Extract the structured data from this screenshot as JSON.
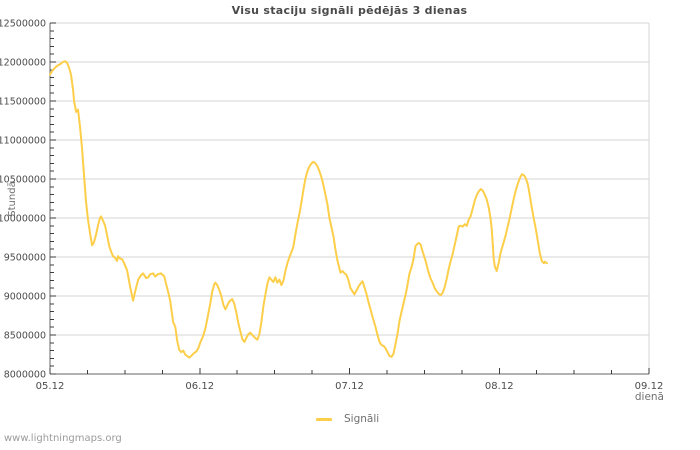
{
  "page": {
    "watermark": "www.lightningmaps.org"
  },
  "chart_data": {
    "type": "line",
    "title": "Visu staciju signāli pēdējās 3 dienas",
    "ylabel": "Stundā",
    "xlabel": "dienā",
    "legend_position": "bottom-center",
    "grid": "horizontal-only",
    "colors": {
      "line": "#fcce4a",
      "grid": "#d6d6d6",
      "axis": "#666666",
      "tick": "#3c3c3c",
      "tick_text": "#4c4c4c",
      "muted_text": "#707070",
      "title_text": "#4a4a4a",
      "watermark_text": "#9b9b9b"
    },
    "xlim_days": [
      5,
      9
    ],
    "x_minor_step_days": 0.25,
    "x_ticks": [
      {
        "day": 5,
        "label": "05.12"
      },
      {
        "day": 6,
        "label": "06.12"
      },
      {
        "day": 7,
        "label": "07.12"
      },
      {
        "day": 8,
        "label": "08.12"
      },
      {
        "day": 9,
        "label": "09.12"
      }
    ],
    "ylim": [
      8000000,
      12500000
    ],
    "y_tick_step": 500000,
    "y_minor_step": 100000,
    "y_tick_labels": [
      "8000000",
      "8500000",
      "9000000",
      "9500000",
      "10000000",
      "10500000",
      "11000000",
      "11500000",
      "12000000",
      "12500000"
    ],
    "series": [
      {
        "name": "Signāli",
        "points": [
          [
            5.0,
            11840000
          ],
          [
            5.02,
            11900000
          ],
          [
            5.047,
            11950000
          ],
          [
            5.067,
            11970000
          ],
          [
            5.087,
            12000000
          ],
          [
            5.1,
            12010000
          ],
          [
            5.114,
            11990000
          ],
          [
            5.127,
            11930000
          ],
          [
            5.14,
            11840000
          ],
          [
            5.154,
            11640000
          ],
          [
            5.161,
            11500000
          ],
          [
            5.174,
            11360000
          ],
          [
            5.187,
            11390000
          ],
          [
            5.201,
            11160000
          ],
          [
            5.214,
            10900000
          ],
          [
            5.227,
            10550000
          ],
          [
            5.241,
            10200000
          ],
          [
            5.254,
            9980000
          ],
          [
            5.268,
            9800000
          ],
          [
            5.281,
            9650000
          ],
          [
            5.294,
            9690000
          ],
          [
            5.308,
            9790000
          ],
          [
            5.321,
            9910000
          ],
          [
            5.334,
            10000000
          ],
          [
            5.341,
            10020000
          ],
          [
            5.355,
            9960000
          ],
          [
            5.368,
            9900000
          ],
          [
            5.381,
            9780000
          ],
          [
            5.395,
            9640000
          ],
          [
            5.408,
            9570000
          ],
          [
            5.421,
            9510000
          ],
          [
            5.435,
            9490000
          ],
          [
            5.448,
            9450000
          ],
          [
            5.455,
            9510000
          ],
          [
            5.468,
            9480000
          ],
          [
            5.482,
            9470000
          ],
          [
            5.495,
            9420000
          ],
          [
            5.515,
            9330000
          ],
          [
            5.535,
            9120000
          ],
          [
            5.555,
            8940000
          ],
          [
            5.569,
            9060000
          ],
          [
            5.589,
            9210000
          ],
          [
            5.609,
            9270000
          ],
          [
            5.622,
            9290000
          ],
          [
            5.642,
            9230000
          ],
          [
            5.656,
            9240000
          ],
          [
            5.669,
            9280000
          ],
          [
            5.689,
            9290000
          ],
          [
            5.702,
            9250000
          ],
          [
            5.722,
            9280000
          ],
          [
            5.742,
            9290000
          ],
          [
            5.763,
            9250000
          ],
          [
            5.776,
            9150000
          ],
          [
            5.789,
            9050000
          ],
          [
            5.803,
            8940000
          ],
          [
            5.823,
            8660000
          ],
          [
            5.836,
            8610000
          ],
          [
            5.85,
            8420000
          ],
          [
            5.863,
            8310000
          ],
          [
            5.876,
            8280000
          ],
          [
            5.89,
            8300000
          ],
          [
            5.903,
            8250000
          ],
          [
            5.916,
            8230000
          ],
          [
            5.93,
            8210000
          ],
          [
            5.943,
            8230000
          ],
          [
            5.957,
            8260000
          ],
          [
            5.977,
            8290000
          ],
          [
            5.99,
            8330000
          ],
          [
            6.003,
            8400000
          ],
          [
            6.023,
            8490000
          ],
          [
            6.037,
            8580000
          ],
          [
            6.05,
            8700000
          ],
          [
            6.07,
            8900000
          ],
          [
            6.084,
            9060000
          ],
          [
            6.097,
            9150000
          ],
          [
            6.104,
            9170000
          ],
          [
            6.117,
            9140000
          ],
          [
            6.13,
            9080000
          ],
          [
            6.144,
            9000000
          ],
          [
            6.157,
            8890000
          ],
          [
            6.171,
            8830000
          ],
          [
            6.184,
            8880000
          ],
          [
            6.197,
            8930000
          ],
          [
            6.217,
            8960000
          ],
          [
            6.231,
            8900000
          ],
          [
            6.244,
            8790000
          ],
          [
            6.257,
            8660000
          ],
          [
            6.271,
            8550000
          ],
          [
            6.284,
            8450000
          ],
          [
            6.298,
            8410000
          ],
          [
            6.311,
            8460000
          ],
          [
            6.324,
            8510000
          ],
          [
            6.338,
            8530000
          ],
          [
            6.351,
            8500000
          ],
          [
            6.371,
            8460000
          ],
          [
            6.385,
            8440000
          ],
          [
            6.398,
            8510000
          ],
          [
            6.411,
            8660000
          ],
          [
            6.425,
            8870000
          ],
          [
            6.438,
            9010000
          ],
          [
            6.452,
            9160000
          ],
          [
            6.465,
            9240000
          ],
          [
            6.478,
            9210000
          ],
          [
            6.492,
            9180000
          ],
          [
            6.505,
            9240000
          ],
          [
            6.518,
            9170000
          ],
          [
            6.532,
            9210000
          ],
          [
            6.545,
            9140000
          ],
          [
            6.559,
            9200000
          ],
          [
            6.572,
            9320000
          ],
          [
            6.585,
            9420000
          ],
          [
            6.599,
            9500000
          ],
          [
            6.612,
            9560000
          ],
          [
            6.625,
            9630000
          ],
          [
            6.639,
            9790000
          ],
          [
            6.652,
            9930000
          ],
          [
            6.666,
            10060000
          ],
          [
            6.679,
            10200000
          ],
          [
            6.692,
            10360000
          ],
          [
            6.706,
            10510000
          ],
          [
            6.719,
            10600000
          ],
          [
            6.732,
            10660000
          ],
          [
            6.746,
            10700000
          ],
          [
            6.759,
            10720000
          ],
          [
            6.773,
            10700000
          ],
          [
            6.786,
            10660000
          ],
          [
            6.799,
            10600000
          ],
          [
            6.813,
            10520000
          ],
          [
            6.826,
            10420000
          ],
          [
            6.839,
            10300000
          ],
          [
            6.853,
            10170000
          ],
          [
            6.866,
            10000000
          ],
          [
            6.88,
            9880000
          ],
          [
            6.893,
            9760000
          ],
          [
            6.906,
            9600000
          ],
          [
            6.92,
            9450000
          ],
          [
            6.94,
            9300000
          ],
          [
            6.953,
            9320000
          ],
          [
            6.967,
            9290000
          ],
          [
            6.98,
            9270000
          ],
          [
            6.993,
            9200000
          ],
          [
            7.007,
            9100000
          ],
          [
            7.02,
            9060000
          ],
          [
            7.033,
            9020000
          ],
          [
            7.047,
            9070000
          ],
          [
            7.06,
            9120000
          ],
          [
            7.074,
            9160000
          ],
          [
            7.087,
            9190000
          ],
          [
            7.1,
            9110000
          ],
          [
            7.114,
            9020000
          ],
          [
            7.127,
            8920000
          ],
          [
            7.14,
            8830000
          ],
          [
            7.154,
            8730000
          ],
          [
            7.174,
            8600000
          ],
          [
            7.187,
            8500000
          ],
          [
            7.201,
            8410000
          ],
          [
            7.214,
            8370000
          ],
          [
            7.228,
            8360000
          ],
          [
            7.241,
            8330000
          ],
          [
            7.254,
            8280000
          ],
          [
            7.268,
            8230000
          ],
          [
            7.281,
            8220000
          ],
          [
            7.294,
            8260000
          ],
          [
            7.308,
            8390000
          ],
          [
            7.321,
            8520000
          ],
          [
            7.334,
            8680000
          ],
          [
            7.348,
            8800000
          ],
          [
            7.361,
            8910000
          ],
          [
            7.375,
            9020000
          ],
          [
            7.388,
            9150000
          ],
          [
            7.401,
            9290000
          ],
          [
            7.415,
            9370000
          ],
          [
            7.428,
            9480000
          ],
          [
            7.441,
            9640000
          ],
          [
            7.455,
            9670000
          ],
          [
            7.462,
            9680000
          ],
          [
            7.475,
            9660000
          ],
          [
            7.488,
            9570000
          ],
          [
            7.508,
            9450000
          ],
          [
            7.528,
            9300000
          ],
          [
            7.542,
            9220000
          ],
          [
            7.555,
            9170000
          ],
          [
            7.569,
            9100000
          ],
          [
            7.582,
            9060000
          ],
          [
            7.595,
            9030000
          ],
          [
            7.609,
            9010000
          ],
          [
            7.622,
            9040000
          ],
          [
            7.635,
            9110000
          ],
          [
            7.649,
            9220000
          ],
          [
            7.662,
            9340000
          ],
          [
            7.676,
            9450000
          ],
          [
            7.689,
            9540000
          ],
          [
            7.702,
            9650000
          ],
          [
            7.716,
            9770000
          ],
          [
            7.729,
            9890000
          ],
          [
            7.742,
            9900000
          ],
          [
            7.756,
            9890000
          ],
          [
            7.769,
            9920000
          ],
          [
            7.783,
            9900000
          ],
          [
            7.796,
            9980000
          ],
          [
            7.809,
            10020000
          ],
          [
            7.823,
            10120000
          ],
          [
            7.836,
            10220000
          ],
          [
            7.849,
            10290000
          ],
          [
            7.863,
            10340000
          ],
          [
            7.876,
            10370000
          ],
          [
            7.89,
            10350000
          ],
          [
            7.903,
            10300000
          ],
          [
            7.916,
            10240000
          ],
          [
            7.93,
            10130000
          ],
          [
            7.943,
            9980000
          ],
          [
            7.95,
            9850000
          ],
          [
            7.957,
            9660000
          ],
          [
            7.963,
            9480000
          ],
          [
            7.97,
            9380000
          ],
          [
            7.983,
            9320000
          ],
          [
            7.997,
            9430000
          ],
          [
            8.01,
            9560000
          ],
          [
            8.024,
            9650000
          ],
          [
            8.043,
            9780000
          ],
          [
            8.057,
            9900000
          ],
          [
            8.07,
            10000000
          ],
          [
            8.084,
            10130000
          ],
          [
            8.097,
            10250000
          ],
          [
            8.11,
            10350000
          ],
          [
            8.124,
            10440000
          ],
          [
            8.137,
            10510000
          ],
          [
            8.151,
            10560000
          ],
          [
            8.164,
            10550000
          ],
          [
            8.177,
            10510000
          ],
          [
            8.191,
            10430000
          ],
          [
            8.204,
            10290000
          ],
          [
            8.217,
            10140000
          ],
          [
            8.231,
            9990000
          ],
          [
            8.244,
            9860000
          ],
          [
            8.258,
            9700000
          ],
          [
            8.271,
            9550000
          ],
          [
            8.284,
            9450000
          ],
          [
            8.298,
            9420000
          ],
          [
            8.304,
            9440000
          ],
          [
            8.318,
            9420000
          ]
        ]
      }
    ]
  }
}
